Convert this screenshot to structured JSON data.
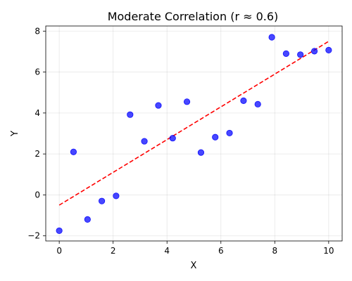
{
  "chart_data": {
    "type": "scatter",
    "title": "Moderate Correlation (r ≈ 0.6)",
    "xlabel": "X",
    "ylabel": "Y",
    "xlim": [
      -0.5,
      10.5
    ],
    "ylim": [
      -2.25,
      8.25
    ],
    "xticks": [
      0,
      2,
      4,
      6,
      8,
      10
    ],
    "yticks": [
      -2,
      0,
      2,
      4,
      6,
      8
    ],
    "grid": true,
    "series": [
      {
        "type": "scatter",
        "color": "#0000ff",
        "x": [
          0,
          0.53,
          1.05,
          1.58,
          2.11,
          2.63,
          3.16,
          3.68,
          4.21,
          4.74,
          5.26,
          5.79,
          6.32,
          6.84,
          7.37,
          7.89,
          8.42,
          8.95,
          9.47,
          10
        ],
        "y": [
          -1.75,
          2.1,
          -1.2,
          -0.3,
          -0.05,
          3.92,
          2.62,
          4.37,
          2.77,
          4.55,
          2.07,
          2.82,
          3.02,
          4.6,
          4.43,
          7.7,
          6.9,
          6.85,
          7.02,
          7.07
        ]
      },
      {
        "type": "line",
        "style": "dashed",
        "color": "#ff0000",
        "x": [
          0,
          10
        ],
        "y": [
          -0.5,
          7.5
        ]
      }
    ]
  }
}
